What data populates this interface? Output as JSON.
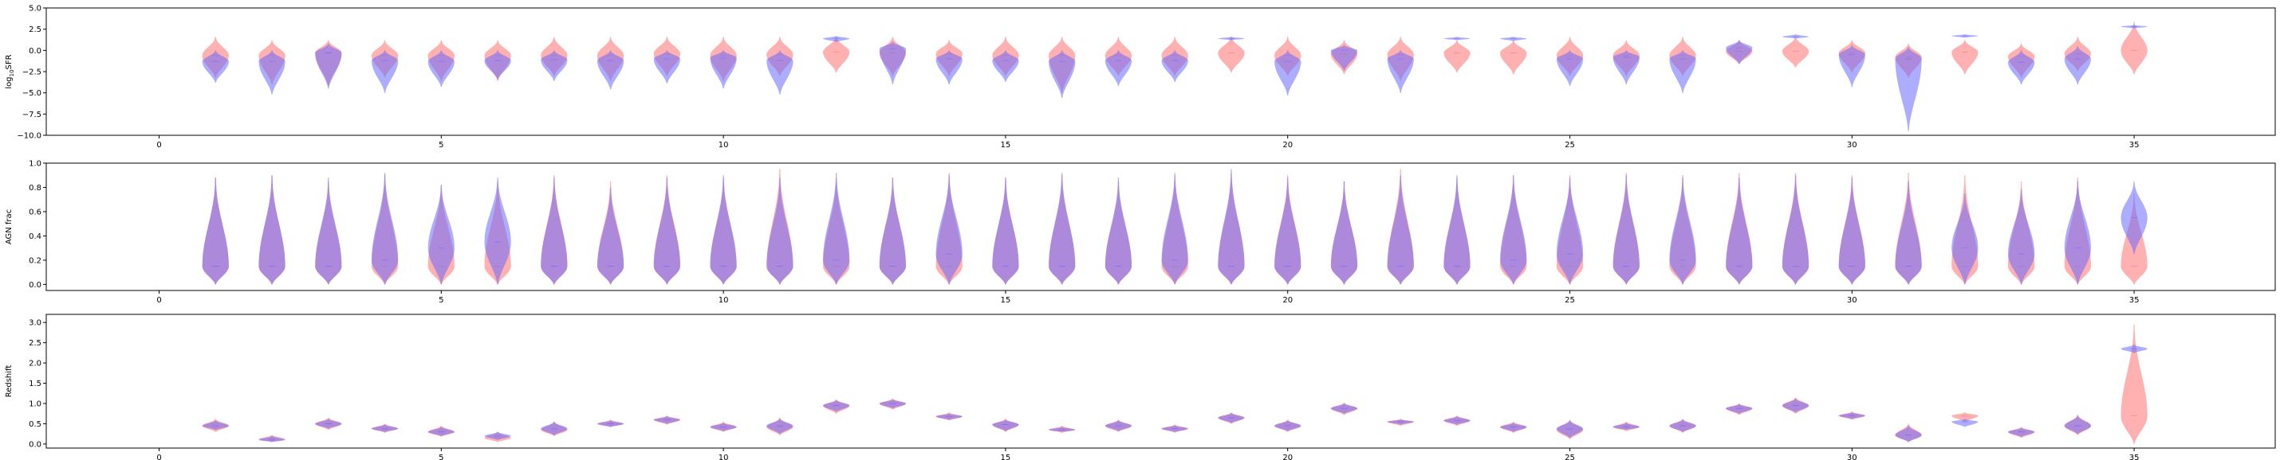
{
  "chart_data": [
    {
      "type": "violin",
      "ylabel": "log$_{10}$SFR",
      "xlim": [
        -2,
        37.5
      ],
      "ylim": [
        -10,
        5
      ],
      "xticks": [
        0,
        5,
        10,
        15,
        20,
        25,
        30,
        35
      ],
      "yticks": [
        5.0,
        2.5,
        0.0,
        -2.5,
        -5.0,
        -7.5,
        -10.0
      ],
      "ytick_labels": [
        "5.0",
        "2.5",
        "0.0",
        "−2.5",
        "−5.0",
        "−7.5",
        "−10.0"
      ],
      "colors": {
        "red": "#ff7070",
        "blue": "#6a6aff"
      },
      "red": [
        [
          1,
          -0.6,
          -3.2,
          1.6
        ],
        [
          2,
          -0.6,
          -4.0,
          1.2
        ],
        [
          3,
          -0.3,
          -4.2,
          1.2
        ],
        [
          4,
          -0.6,
          -3.2,
          1.2
        ],
        [
          5,
          -0.6,
          -3.6,
          1.2
        ],
        [
          6,
          -0.6,
          -3.6,
          1.2
        ],
        [
          7,
          -0.6,
          -3.0,
          1.6
        ],
        [
          8,
          -0.6,
          -3.6,
          1.6
        ],
        [
          9,
          -0.4,
          -3.0,
          1.6
        ],
        [
          10,
          -0.6,
          -3.6,
          1.6
        ],
        [
          11,
          -0.5,
          -3.0,
          1.6
        ],
        [
          12,
          -0.2,
          -2.6,
          1.6
        ],
        [
          13,
          -0.3,
          -3.0,
          1.6
        ],
        [
          14,
          -0.4,
          -3.0,
          1.2
        ],
        [
          15,
          -0.6,
          -3.0,
          1.6
        ],
        [
          16,
          -0.6,
          -5.0,
          1.6
        ],
        [
          17,
          -0.6,
          -3.0,
          1.6
        ],
        [
          18,
          -0.6,
          -3.0,
          1.6
        ],
        [
          19,
          -0.3,
          -2.6,
          1.6
        ],
        [
          20,
          -0.6,
          -3.0,
          1.6
        ],
        [
          21,
          -0.4,
          -2.8,
          1.2
        ],
        [
          22,
          -0.5,
          -3.6,
          1.6
        ],
        [
          23,
          -0.3,
          -2.6,
          1.2
        ],
        [
          24,
          -0.3,
          -2.8,
          1.2
        ],
        [
          25,
          -0.6,
          -3.0,
          1.6
        ],
        [
          26,
          -0.6,
          -3.0,
          1.2
        ],
        [
          27,
          -0.6,
          -3.0,
          1.6
        ],
        [
          28,
          -0.1,
          -1.6,
          1.2
        ],
        [
          29,
          -0.1,
          -2.0,
          1.6
        ],
        [
          30,
          -0.3,
          -2.6,
          1.2
        ],
        [
          31,
          -0.8,
          -3.2,
          0.8
        ],
        [
          32,
          -0.2,
          -2.8,
          1.2
        ],
        [
          33,
          -0.7,
          -3.2,
          0.8
        ],
        [
          34,
          -0.4,
          -2.4,
          1.6
        ],
        [
          35,
          0.0,
          -2.8,
          3.4
        ]
      ],
      "blue": [
        [
          1,
          -1.3,
          -3.8,
          0.0
        ],
        [
          2,
          -1.3,
          -5.2,
          0.0
        ],
        [
          3,
          -0.3,
          -4.5,
          0.8
        ],
        [
          4,
          -1.2,
          -5.0,
          0.0
        ],
        [
          5,
          -1.3,
          -4.3,
          0.0
        ],
        [
          6,
          -1.2,
          -3.4,
          0.0
        ],
        [
          7,
          -1.1,
          -3.6,
          0.0
        ],
        [
          8,
          -1.2,
          -4.6,
          0.0
        ],
        [
          9,
          -1.0,
          -3.9,
          0.0
        ],
        [
          10,
          -0.9,
          -4.5,
          0.0
        ],
        [
          11,
          -1.2,
          -5.2,
          0.0
        ],
        [
          12,
          1.4,
          1.0,
          1.7
        ],
        [
          13,
          0.2,
          -4.0,
          1.0
        ],
        [
          14,
          -1.0,
          -4.0,
          0.0
        ],
        [
          15,
          -1.2,
          -3.7,
          0.0
        ],
        [
          16,
          -1.3,
          -5.6,
          0.0
        ],
        [
          17,
          -1.2,
          -4.2,
          0.0
        ],
        [
          18,
          -1.2,
          -3.7,
          0.0
        ],
        [
          19,
          1.4,
          1.2,
          1.6
        ],
        [
          20,
          -1.3,
          -5.3,
          0.0
        ],
        [
          21,
          0.0,
          -2.4,
          0.6
        ],
        [
          22,
          -1.0,
          -5.0,
          0.0
        ],
        [
          23,
          1.4,
          1.2,
          1.6
        ],
        [
          24,
          1.4,
          1.1,
          1.6
        ],
        [
          25,
          -1.0,
          -4.2,
          0.0
        ],
        [
          26,
          -0.8,
          -4.0,
          0.0
        ],
        [
          27,
          -1.0,
          -5.0,
          0.0
        ],
        [
          28,
          0.3,
          -1.6,
          1.2
        ],
        [
          29,
          1.6,
          1.4,
          1.9
        ],
        [
          30,
          -0.5,
          -4.3,
          0.6
        ],
        [
          31,
          -1.0,
          -9.5,
          0.4
        ],
        [
          32,
          1.7,
          1.5,
          1.9
        ],
        [
          33,
          -1.4,
          -4.0,
          0.0
        ],
        [
          34,
          -1.0,
          -4.0,
          0.5
        ],
        [
          35,
          2.8,
          2.6,
          3.0
        ]
      ]
    },
    {
      "type": "violin",
      "ylabel": "AGN frac",
      "xlim": [
        -2,
        37.5
      ],
      "ylim": [
        -0.05,
        1.0
      ],
      "xticks": [
        0,
        5,
        10,
        15,
        20,
        25,
        30,
        35
      ],
      "yticks": [
        0.0,
        0.2,
        0.4,
        0.6,
        0.8,
        1.0
      ],
      "ytick_labels": [
        "0.0",
        "0.2",
        "0.4",
        "0.6",
        "0.8",
        "1.0"
      ],
      "colors": {
        "red": "#ff7070",
        "blue": "#6a6aff"
      },
      "red": [
        [
          1,
          0.15,
          0.0,
          0.88
        ],
        [
          2,
          0.15,
          0.0,
          0.9
        ],
        [
          3,
          0.15,
          0.0,
          0.85
        ],
        [
          4,
          0.15,
          0.0,
          0.9
        ],
        [
          5,
          0.15,
          0.0,
          0.82
        ],
        [
          6,
          0.15,
          0.0,
          0.85
        ],
        [
          7,
          0.15,
          0.0,
          0.9
        ],
        [
          8,
          0.15,
          0.0,
          0.85
        ],
        [
          9,
          0.15,
          0.0,
          0.9
        ],
        [
          10,
          0.15,
          0.0,
          0.88
        ],
        [
          11,
          0.15,
          0.0,
          0.95
        ],
        [
          12,
          0.15,
          0.0,
          0.88
        ],
        [
          13,
          0.15,
          0.0,
          0.88
        ],
        [
          14,
          0.15,
          0.0,
          0.92
        ],
        [
          15,
          0.15,
          0.0,
          0.88
        ],
        [
          16,
          0.15,
          0.0,
          0.9
        ],
        [
          17,
          0.15,
          0.0,
          0.85
        ],
        [
          18,
          0.15,
          0.0,
          0.9
        ],
        [
          19,
          0.15,
          0.0,
          0.92
        ],
        [
          20,
          0.15,
          0.0,
          0.9
        ],
        [
          21,
          0.15,
          0.0,
          0.85
        ],
        [
          22,
          0.15,
          0.0,
          0.95
        ],
        [
          23,
          0.15,
          0.0,
          0.88
        ],
        [
          24,
          0.15,
          0.0,
          0.9
        ],
        [
          25,
          0.15,
          0.0,
          0.9
        ],
        [
          26,
          0.15,
          0.0,
          0.92
        ],
        [
          27,
          0.15,
          0.0,
          0.88
        ],
        [
          28,
          0.15,
          0.0,
          0.92
        ],
        [
          29,
          0.15,
          0.0,
          0.92
        ],
        [
          30,
          0.15,
          0.0,
          0.9
        ],
        [
          31,
          0.15,
          0.0,
          0.92
        ],
        [
          32,
          0.15,
          0.0,
          0.9
        ],
        [
          33,
          0.15,
          0.0,
          0.85
        ],
        [
          34,
          0.15,
          0.0,
          0.88
        ],
        [
          35,
          0.15,
          0.0,
          0.75
        ]
      ],
      "blue": [
        [
          1,
          0.15,
          0.0,
          0.88
        ],
        [
          2,
          0.15,
          0.0,
          0.9
        ],
        [
          3,
          0.15,
          0.0,
          0.88
        ],
        [
          4,
          0.2,
          0.0,
          0.92
        ],
        [
          5,
          0.3,
          0.0,
          0.82
        ],
        [
          6,
          0.35,
          0.0,
          0.88
        ],
        [
          7,
          0.15,
          0.0,
          0.88
        ],
        [
          8,
          0.15,
          0.0,
          0.8
        ],
        [
          9,
          0.15,
          0.0,
          0.88
        ],
        [
          10,
          0.15,
          0.0,
          0.9
        ],
        [
          11,
          0.15,
          0.0,
          0.88
        ],
        [
          12,
          0.2,
          0.0,
          0.92
        ],
        [
          13,
          0.15,
          0.0,
          0.88
        ],
        [
          14,
          0.25,
          0.0,
          0.9
        ],
        [
          15,
          0.15,
          0.0,
          0.88
        ],
        [
          16,
          0.15,
          0.0,
          0.92
        ],
        [
          17,
          0.15,
          0.0,
          0.88
        ],
        [
          18,
          0.2,
          0.0,
          0.92
        ],
        [
          19,
          0.15,
          0.0,
          0.95
        ],
        [
          20,
          0.15,
          0.0,
          0.88
        ],
        [
          21,
          0.15,
          0.0,
          0.85
        ],
        [
          22,
          0.15,
          0.0,
          0.9
        ],
        [
          23,
          0.15,
          0.0,
          0.9
        ],
        [
          24,
          0.2,
          0.0,
          0.9
        ],
        [
          25,
          0.25,
          0.0,
          0.88
        ],
        [
          26,
          0.15,
          0.0,
          0.9
        ],
        [
          27,
          0.2,
          0.0,
          0.9
        ],
        [
          28,
          0.15,
          0.0,
          0.88
        ],
        [
          29,
          0.15,
          0.0,
          0.9
        ],
        [
          30,
          0.15,
          0.0,
          0.88
        ],
        [
          31,
          0.15,
          0.0,
          0.85
        ],
        [
          32,
          0.3,
          0.0,
          0.75
        ],
        [
          33,
          0.25,
          0.0,
          0.78
        ],
        [
          34,
          0.3,
          0.0,
          0.85
        ],
        [
          35,
          0.55,
          0.25,
          0.85
        ]
      ]
    },
    {
      "type": "violin",
      "ylabel": "Redshift",
      "xlim": [
        -2,
        37.5
      ],
      "ylim": [
        -0.1,
        3.2
      ],
      "xticks": [
        0,
        5,
        10,
        15,
        20,
        25,
        30,
        35
      ],
      "yticks": [
        0.0,
        0.5,
        1.0,
        1.5,
        2.0,
        2.5,
        3.0
      ],
      "ytick_labels": [
        "0.0",
        "0.5",
        "1.0",
        "1.5",
        "2.0",
        "2.5",
        "3.0"
      ],
      "colors": {
        "red": "#ff7070",
        "blue": "#6a6aff"
      },
      "red": [
        [
          1,
          0.45,
          0.3,
          0.62
        ],
        [
          2,
          0.12,
          0.05,
          0.22
        ],
        [
          3,
          0.5,
          0.35,
          0.65
        ],
        [
          4,
          0.38,
          0.28,
          0.5
        ],
        [
          5,
          0.3,
          0.18,
          0.45
        ],
        [
          6,
          0.15,
          0.05,
          0.3
        ],
        [
          7,
          0.35,
          0.2,
          0.55
        ],
        [
          8,
          0.5,
          0.42,
          0.6
        ],
        [
          9,
          0.6,
          0.48,
          0.7
        ],
        [
          10,
          0.42,
          0.3,
          0.55
        ],
        [
          11,
          0.42,
          0.22,
          0.65
        ],
        [
          12,
          0.95,
          0.75,
          1.1
        ],
        [
          13,
          1.0,
          0.85,
          1.12
        ],
        [
          14,
          0.68,
          0.58,
          0.78
        ],
        [
          15,
          0.48,
          0.3,
          0.62
        ],
        [
          16,
          0.35,
          0.28,
          0.45
        ],
        [
          17,
          0.45,
          0.3,
          0.6
        ],
        [
          18,
          0.38,
          0.28,
          0.48
        ],
        [
          19,
          0.65,
          0.5,
          0.78
        ],
        [
          20,
          0.45,
          0.3,
          0.6
        ],
        [
          21,
          0.88,
          0.72,
          1.02
        ],
        [
          22,
          0.55,
          0.45,
          0.62
        ],
        [
          23,
          0.58,
          0.45,
          0.7
        ],
        [
          24,
          0.42,
          0.28,
          0.55
        ],
        [
          25,
          0.35,
          0.12,
          0.6
        ],
        [
          26,
          0.42,
          0.32,
          0.55
        ],
        [
          27,
          0.45,
          0.28,
          0.62
        ],
        [
          28,
          0.88,
          0.72,
          1.0
        ],
        [
          29,
          0.95,
          0.75,
          1.15
        ],
        [
          30,
          0.7,
          0.6,
          0.8
        ],
        [
          31,
          0.22,
          0.05,
          0.5
        ],
        [
          32,
          0.7,
          0.55,
          0.78
        ],
        [
          33,
          0.3,
          0.15,
          0.42
        ],
        [
          34,
          0.45,
          0.22,
          0.72
        ],
        [
          35,
          0.7,
          0.0,
          2.95
        ]
      ],
      "blue": [
        [
          1,
          0.45,
          0.35,
          0.58
        ],
        [
          2,
          0.1,
          0.05,
          0.2
        ],
        [
          3,
          0.5,
          0.38,
          0.62
        ],
        [
          4,
          0.38,
          0.3,
          0.48
        ],
        [
          5,
          0.3,
          0.2,
          0.42
        ],
        [
          6,
          0.2,
          0.1,
          0.3
        ],
        [
          7,
          0.38,
          0.22,
          0.55
        ],
        [
          8,
          0.5,
          0.42,
          0.58
        ],
        [
          9,
          0.6,
          0.5,
          0.68
        ],
        [
          10,
          0.42,
          0.32,
          0.52
        ],
        [
          11,
          0.45,
          0.25,
          0.62
        ],
        [
          12,
          0.95,
          0.8,
          1.08
        ],
        [
          13,
          1.0,
          0.88,
          1.1
        ],
        [
          14,
          0.68,
          0.6,
          0.75
        ],
        [
          15,
          0.48,
          0.32,
          0.6
        ],
        [
          16,
          0.35,
          0.3,
          0.42
        ],
        [
          17,
          0.45,
          0.32,
          0.58
        ],
        [
          18,
          0.38,
          0.3,
          0.46
        ],
        [
          19,
          0.65,
          0.52,
          0.76
        ],
        [
          20,
          0.45,
          0.32,
          0.58
        ],
        [
          21,
          0.88,
          0.75,
          1.0
        ],
        [
          22,
          0.55,
          0.48,
          0.6
        ],
        [
          23,
          0.58,
          0.48,
          0.68
        ],
        [
          24,
          0.42,
          0.3,
          0.52
        ],
        [
          25,
          0.38,
          0.15,
          0.58
        ],
        [
          26,
          0.42,
          0.35,
          0.52
        ],
        [
          27,
          0.45,
          0.3,
          0.6
        ],
        [
          28,
          0.88,
          0.75,
          0.98
        ],
        [
          29,
          0.95,
          0.78,
          1.12
        ],
        [
          30,
          0.7,
          0.62,
          0.78
        ],
        [
          31,
          0.22,
          0.05,
          0.45
        ],
        [
          32,
          0.55,
          0.42,
          0.62
        ],
        [
          33,
          0.3,
          0.18,
          0.4
        ],
        [
          34,
          0.45,
          0.25,
          0.7
        ],
        [
          35,
          2.35,
          2.25,
          2.45
        ]
      ]
    }
  ]
}
